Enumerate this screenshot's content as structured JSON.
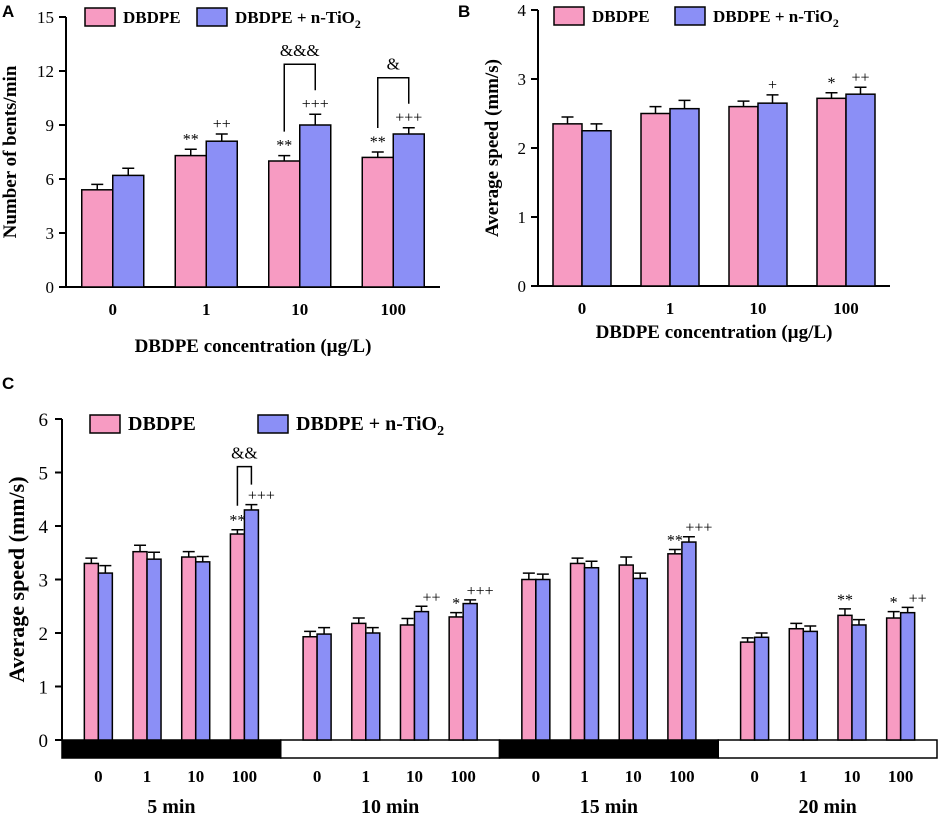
{
  "colors": {
    "dbdpe": "#f79bc2",
    "tio2": "#8b8ff6",
    "axis": "#000000",
    "bar_dark": "#000000",
    "bar_light": "#ffffff"
  },
  "chart_data": [
    {
      "panel": "A",
      "type": "bar",
      "ylabel": "Number of bents/min",
      "xlabel": "DBDPE concentration (µg/L)",
      "ylim": [
        0,
        15
      ],
      "yticks": [
        "0",
        "3",
        "6",
        "9",
        "12",
        "15"
      ],
      "categories": [
        "0",
        "1",
        "10",
        "100"
      ],
      "legend": [
        "DBDPE",
        "DBDPE + n-TiO"
      ],
      "legend_sub": "2",
      "series": [
        {
          "name": "DBDPE",
          "values": [
            5.4,
            7.3,
            7.0,
            7.2
          ],
          "errors": [
            0.3,
            0.35,
            0.3,
            0.3
          ],
          "annotations": [
            "",
            "**",
            "**",
            "**"
          ]
        },
        {
          "name": "DBDPE + n-TiO2",
          "values": [
            6.2,
            8.1,
            9.0,
            8.5
          ],
          "errors": [
            0.4,
            0.4,
            0.6,
            0.35
          ],
          "annotations": [
            "",
            "++",
            "+++",
            "+++"
          ]
        }
      ],
      "brackets": [
        {
          "category": "10",
          "label": "&&&"
        },
        {
          "category": "100",
          "label": "&"
        }
      ]
    },
    {
      "panel": "B",
      "type": "bar",
      "ylabel": "Average speed (mm/s)",
      "xlabel": "DBDPE concentration (µg/L)",
      "ylim": [
        0,
        4
      ],
      "yticks": [
        "0",
        "1",
        "2",
        "3",
        "4"
      ],
      "categories": [
        "0",
        "1",
        "10",
        "100"
      ],
      "legend": [
        "DBDPE",
        "DBDPE + n-TiO"
      ],
      "legend_sub": "2",
      "series": [
        {
          "name": "DBDPE",
          "values": [
            2.35,
            2.5,
            2.6,
            2.72
          ],
          "errors": [
            0.1,
            0.1,
            0.08,
            0.08
          ],
          "annotations": [
            "",
            "",
            "",
            "*"
          ]
        },
        {
          "name": "DBDPE + n-TiO2",
          "values": [
            2.25,
            2.57,
            2.65,
            2.78
          ],
          "errors": [
            0.1,
            0.12,
            0.12,
            0.1
          ],
          "annotations": [
            "",
            "",
            "+",
            "++"
          ]
        }
      ],
      "brackets": []
    },
    {
      "panel": "C",
      "type": "bar",
      "ylabel": "Average speed (mm/s)",
      "ylim": [
        0,
        6
      ],
      "yticks": [
        "0",
        "1",
        "2",
        "3",
        "4",
        "5",
        "6"
      ],
      "legend": [
        "DBDPE",
        "DBDPE + n-TiO"
      ],
      "legend_sub": "2",
      "groups": [
        {
          "label": "5 min",
          "light": false,
          "categories": [
            "0",
            "1",
            "10",
            "100"
          ],
          "dbdpe": [
            3.3,
            3.52,
            3.42,
            3.85
          ],
          "dbdpe_err": [
            0.1,
            0.12,
            0.1,
            0.08
          ],
          "tio2": [
            3.12,
            3.38,
            3.33,
            4.3
          ],
          "tio2_err": [
            0.14,
            0.13,
            0.1,
            0.1
          ],
          "dbdpe_ann": [
            "",
            "",
            "",
            "**"
          ],
          "tio2_ann": [
            "",
            "",
            "",
            "+++"
          ],
          "bracket": "&&"
        },
        {
          "label": "10 min",
          "light": true,
          "categories": [
            "0",
            "1",
            "10",
            "100"
          ],
          "dbdpe": [
            1.93,
            2.18,
            2.15,
            2.3
          ],
          "dbdpe_err": [
            0.1,
            0.1,
            0.12,
            0.08
          ],
          "tio2": [
            1.98,
            2.0,
            2.4,
            2.55
          ],
          "tio2_err": [
            0.12,
            0.1,
            0.1,
            0.07
          ],
          "dbdpe_ann": [
            "",
            "",
            "",
            "*"
          ],
          "tio2_ann": [
            "",
            "",
            "++",
            "+++"
          ],
          "bracket": ""
        },
        {
          "label": "15 min",
          "light": false,
          "categories": [
            "0",
            "1",
            "10",
            "100"
          ],
          "dbdpe": [
            3.0,
            3.3,
            3.27,
            3.48
          ],
          "dbdpe_err": [
            0.12,
            0.1,
            0.15,
            0.08
          ],
          "tio2": [
            3.0,
            3.22,
            3.02,
            3.7
          ],
          "tio2_err": [
            0.1,
            0.12,
            0.1,
            0.1
          ],
          "dbdpe_ann": [
            "",
            "",
            "",
            "**"
          ],
          "tio2_ann": [
            "",
            "",
            "",
            "+++"
          ],
          "bracket": ""
        },
        {
          "label": "20 min",
          "light": true,
          "categories": [
            "0",
            "1",
            "10",
            "100"
          ],
          "dbdpe": [
            1.83,
            2.08,
            2.33,
            2.28
          ],
          "dbdpe_err": [
            0.08,
            0.1,
            0.12,
            0.12
          ],
          "tio2": [
            1.92,
            2.03,
            2.15,
            2.38
          ],
          "tio2_err": [
            0.08,
            0.1,
            0.1,
            0.1
          ],
          "dbdpe_ann": [
            "",
            "",
            "**",
            "*"
          ],
          "tio2_ann": [
            "",
            "",
            "",
            "++"
          ],
          "bracket": ""
        }
      ]
    }
  ],
  "panel_labels": [
    "A",
    "B",
    "C"
  ]
}
